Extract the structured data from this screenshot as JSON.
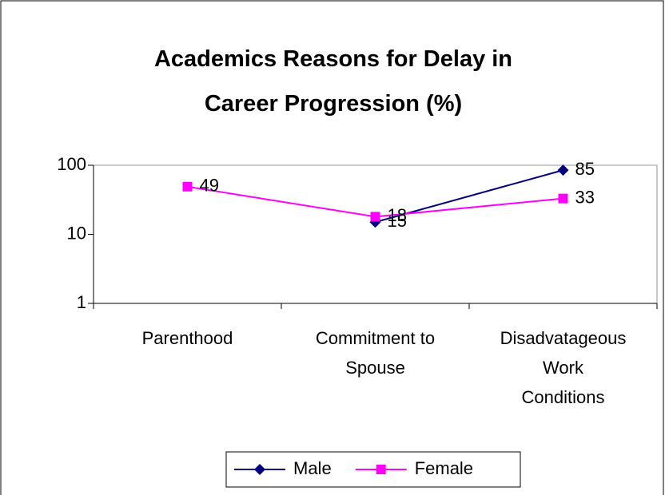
{
  "chart_data": {
    "type": "line",
    "title": "Academics Reasons for Delay in Career Progression (%)",
    "categories": [
      "Parenthood",
      "Commitment to Spouse",
      "Disadvatageous Work Conditions"
    ],
    "series": [
      {
        "name": "Male",
        "color": "#000080",
        "marker": "diamond",
        "values": [
          null,
          15,
          85
        ]
      },
      {
        "name": "Female",
        "color": "#ff00ff",
        "marker": "square",
        "values": [
          49,
          18,
          33
        ]
      }
    ],
    "ylim": [
      1,
      100
    ],
    "yticks": [
      1,
      10,
      100
    ],
    "log_scale": true,
    "grid": false,
    "data_labels": true,
    "legend": "bottom"
  }
}
